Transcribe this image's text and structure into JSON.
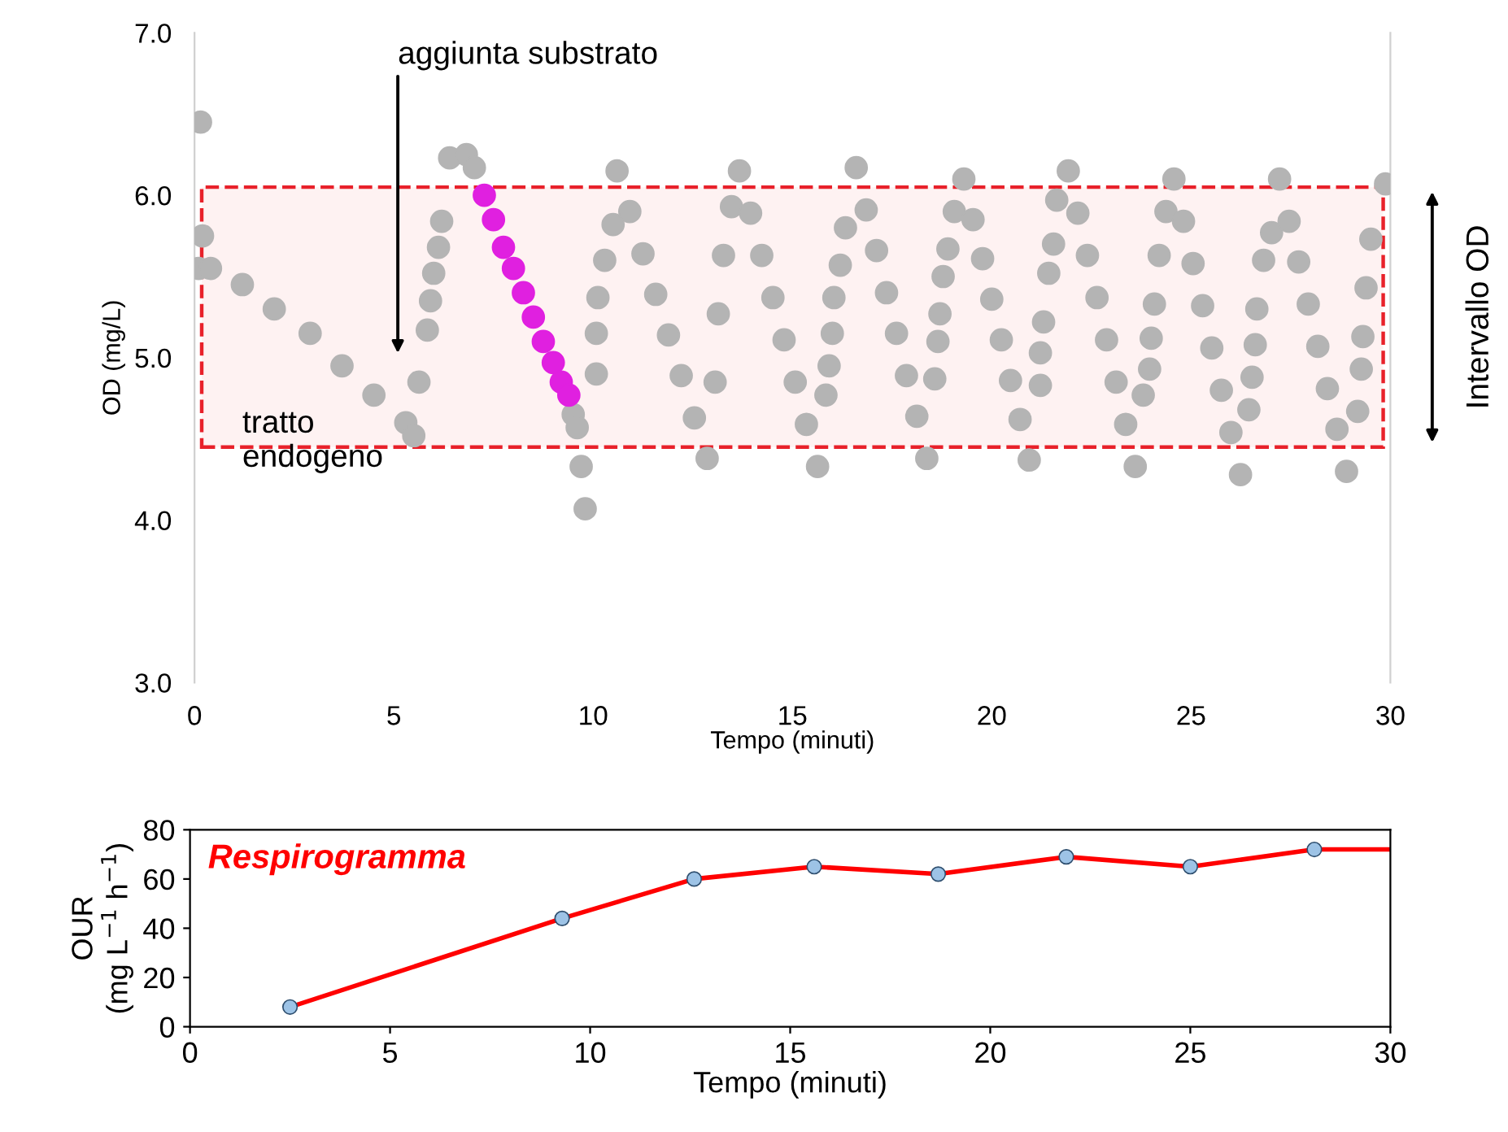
{
  "chart_data": [
    {
      "type": "scatter",
      "xlabel": "Tempo (minuti)",
      "ylabel": "OD (mg/L)",
      "xlim": [
        0,
        30
      ],
      "ylim": [
        3,
        7
      ],
      "xticks": [
        0,
        5,
        10,
        15,
        20,
        25,
        30
      ],
      "yticks": [
        {
          "value": 3,
          "label": "3.0"
        },
        {
          "value": 4,
          "label": "4.0"
        },
        {
          "value": 5,
          "label": "5.0"
        },
        {
          "value": 6,
          "label": "6.0"
        },
        {
          "value": 7,
          "label": "7.0"
        }
      ],
      "grid": false,
      "marker": "circle",
      "series": [
        {
          "color": "#b4b4b4",
          "x": [
            0.15,
            0.1,
            0.2,
            0.4,
            1.2,
            2.0,
            2.9,
            3.7,
            4.5,
            5.3,
            5.5,
            5.63,
            5.84,
            5.92,
            6.0,
            6.12,
            6.2,
            6.4,
            6.82,
            7.02,
            9.5,
            9.6,
            9.7,
            9.8,
            10.08,
            10.08,
            10.12,
            10.29,
            10.5,
            10.6,
            10.92,
            11.25,
            11.57,
            11.89,
            12.21,
            12.54,
            12.86,
            13.06,
            13.14,
            13.27,
            13.47,
            13.67,
            13.95,
            14.23,
            14.51,
            14.79,
            15.07,
            15.35,
            15.63,
            15.84,
            15.92,
            16.0,
            16.04,
            16.2,
            16.33,
            16.6,
            16.85,
            17.11,
            17.36,
            17.61,
            17.86,
            18.12,
            18.37,
            18.57,
            18.65,
            18.7,
            18.78,
            18.9,
            19.06,
            19.3,
            19.53,
            19.77,
            20.0,
            20.24,
            20.47,
            20.71,
            20.94,
            21.22,
            21.22,
            21.3,
            21.43,
            21.55,
            21.63,
            21.92,
            22.16,
            22.4,
            22.64,
            22.88,
            23.12,
            23.36,
            23.6,
            23.8,
            23.96,
            24.0,
            24.08,
            24.2,
            24.37,
            24.57,
            24.81,
            25.05,
            25.29,
            25.52,
            25.76,
            26.0,
            26.24,
            26.45,
            26.53,
            26.61,
            26.65,
            26.82,
            27.02,
            27.22,
            27.46,
            27.7,
            27.94,
            28.18,
            28.42,
            28.66,
            28.9,
            29.18,
            29.27,
            29.31,
            29.39,
            29.51,
            29.88
          ],
          "values": [
            6.45,
            5.55,
            5.75,
            5.55,
            5.45,
            5.3,
            5.15,
            4.95,
            4.77,
            4.6,
            4.52,
            4.85,
            5.17,
            5.35,
            5.52,
            5.68,
            5.84,
            6.23,
            6.25,
            6.17,
            4.65,
            4.57,
            4.33,
            4.07,
            4.9,
            5.15,
            5.37,
            5.6,
            5.82,
            6.15,
            5.9,
            5.64,
            5.39,
            5.14,
            4.89,
            4.63,
            4.38,
            4.85,
            5.27,
            5.63,
            5.93,
            6.15,
            5.89,
            5.63,
            5.37,
            5.11,
            4.85,
            4.59,
            4.33,
            4.77,
            4.95,
            5.15,
            5.37,
            5.57,
            5.8,
            6.17,
            5.91,
            5.66,
            5.4,
            5.15,
            4.89,
            4.64,
            4.38,
            4.87,
            5.1,
            5.27,
            5.5,
            5.67,
            5.9,
            6.1,
            5.85,
            5.61,
            5.36,
            5.11,
            4.86,
            4.62,
            4.37,
            4.83,
            5.03,
            5.22,
            5.52,
            5.7,
            5.97,
            6.15,
            5.89,
            5.63,
            5.37,
            5.11,
            4.85,
            4.59,
            4.33,
            4.77,
            4.93,
            5.12,
            5.33,
            5.63,
            5.9,
            6.1,
            5.84,
            5.58,
            5.32,
            5.06,
            4.8,
            4.54,
            4.28,
            4.68,
            4.88,
            5.08,
            5.3,
            5.6,
            5.77,
            6.1,
            5.84,
            5.59,
            5.33,
            5.07,
            4.81,
            4.56,
            4.3,
            4.67,
            4.93,
            5.13,
            5.43,
            5.73,
            6.07
          ]
        },
        {
          "color": "#e020e0",
          "x": [
            7.27,
            7.5,
            7.75,
            8.0,
            8.25,
            8.5,
            8.75,
            9.0,
            9.2,
            9.39
          ],
          "values": [
            6.0,
            5.85,
            5.68,
            5.55,
            5.4,
            5.25,
            5.1,
            4.97,
            4.85,
            4.77
          ]
        }
      ],
      "bands": [
        {
          "axis": "y",
          "from": 4.45,
          "to": 6.05,
          "label": "Intervallo OD",
          "color": "#e8212a"
        }
      ],
      "annotations": [
        "aggiunta substrato",
        "tratto\nendogeno"
      ]
    },
    {
      "type": "line",
      "title": "Respirogramma",
      "xlabel": "Tempo (minuti)",
      "ylabel": "OUR\n(mg L$^{−1}$ h$^{−1}$)",
      "xlim": [
        0,
        30
      ],
      "ylim": [
        0,
        80
      ],
      "xticks": [
        0,
        5,
        10,
        15,
        20,
        25,
        30
      ],
      "yticks": [
        0,
        20,
        40,
        60,
        80
      ],
      "grid": false,
      "series": [
        {
          "type": "line",
          "color": "#ff0000",
          "marker": "none",
          "x": [
            2.5,
            9.3,
            12.6,
            15.6,
            18.7,
            21.9,
            25.0,
            28.1,
            30
          ],
          "values": [
            8,
            44,
            60,
            65,
            62,
            69,
            65,
            72,
            72
          ]
        },
        {
          "type": "scatter",
          "color": "#9dc3e6",
          "marker": "circle",
          "x": [
            2.5,
            9.3,
            12.6,
            15.6,
            18.7,
            21.9,
            25.0,
            28.1
          ],
          "values": [
            8,
            44,
            60,
            65,
            62,
            69,
            65,
            72
          ]
        }
      ]
    }
  ]
}
